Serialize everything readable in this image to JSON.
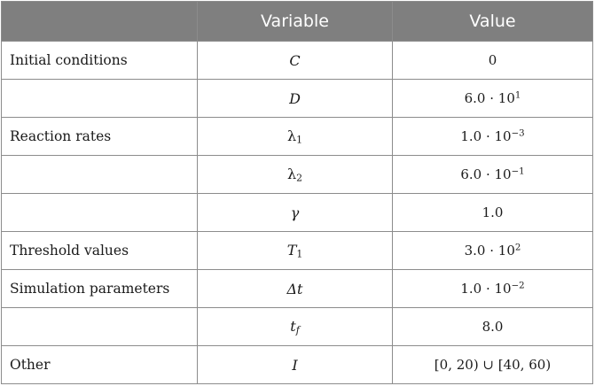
{
  "table": {
    "headers": [
      "",
      "Variable",
      "Value"
    ],
    "rows": [
      {
        "label": "Initial conditions",
        "var": "C",
        "var_sub": "",
        "val_base": "0",
        "val_exp": ""
      },
      {
        "label": "",
        "var": "D",
        "var_sub": "",
        "val_base": "6.0 · 10",
        "val_exp": "1"
      },
      {
        "label": "Reaction rates",
        "var": "λ",
        "var_sub": "1",
        "val_base": "1.0 · 10",
        "val_exp": "−3"
      },
      {
        "label": "",
        "var": "λ",
        "var_sub": "2",
        "val_base": "6.0 · 10",
        "val_exp": "−1"
      },
      {
        "label": "",
        "var": "γ",
        "var_sub": "",
        "val_base": "1.0",
        "val_exp": ""
      },
      {
        "label": "Threshold values",
        "var": "T",
        "var_sub": "1",
        "val_base": "3.0 · 10",
        "val_exp": "2"
      },
      {
        "label": "Simulation parameters",
        "var": "Δt",
        "var_sub": "",
        "val_base": "1.0 · 10",
        "val_exp": "−2"
      },
      {
        "label": "",
        "var": "t",
        "var_sub": "f",
        "val_base": "8.0",
        "val_exp": ""
      },
      {
        "label": "Other",
        "var": "I",
        "var_sub": "",
        "val_base": "[0, 20) ∪ [40, 60)",
        "val_exp": ""
      }
    ]
  }
}
